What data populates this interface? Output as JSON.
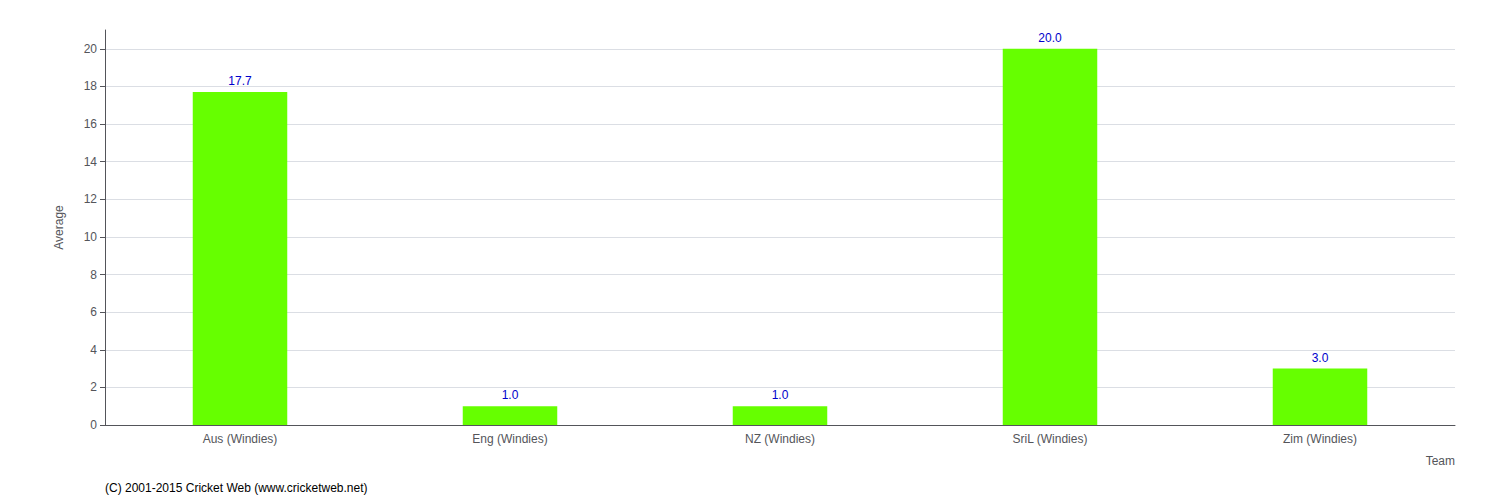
{
  "chart_data": {
    "type": "bar",
    "categories": [
      "Aus (Windies)",
      "Eng (Windies)",
      "NZ (Windies)",
      "SriL (Windies)",
      "Zim (Windies)"
    ],
    "values": [
      17.7,
      1.0,
      1.0,
      20.0,
      3.0
    ],
    "value_labels": [
      "17.7",
      "1.0",
      "1.0",
      "20.0",
      "3.0"
    ],
    "data_labels": true,
    "color": "#66ff00",
    "xlabel": "Team",
    "ylabel": "Average",
    "ylim": [
      0,
      21
    ],
    "yticks": [
      0,
      2,
      4,
      6,
      8,
      10,
      12,
      14,
      16,
      18,
      20
    ],
    "grid": true,
    "annotations": [
      "(C) 2001-2015 Cricket Web (www.cricketweb.net)"
    ]
  }
}
